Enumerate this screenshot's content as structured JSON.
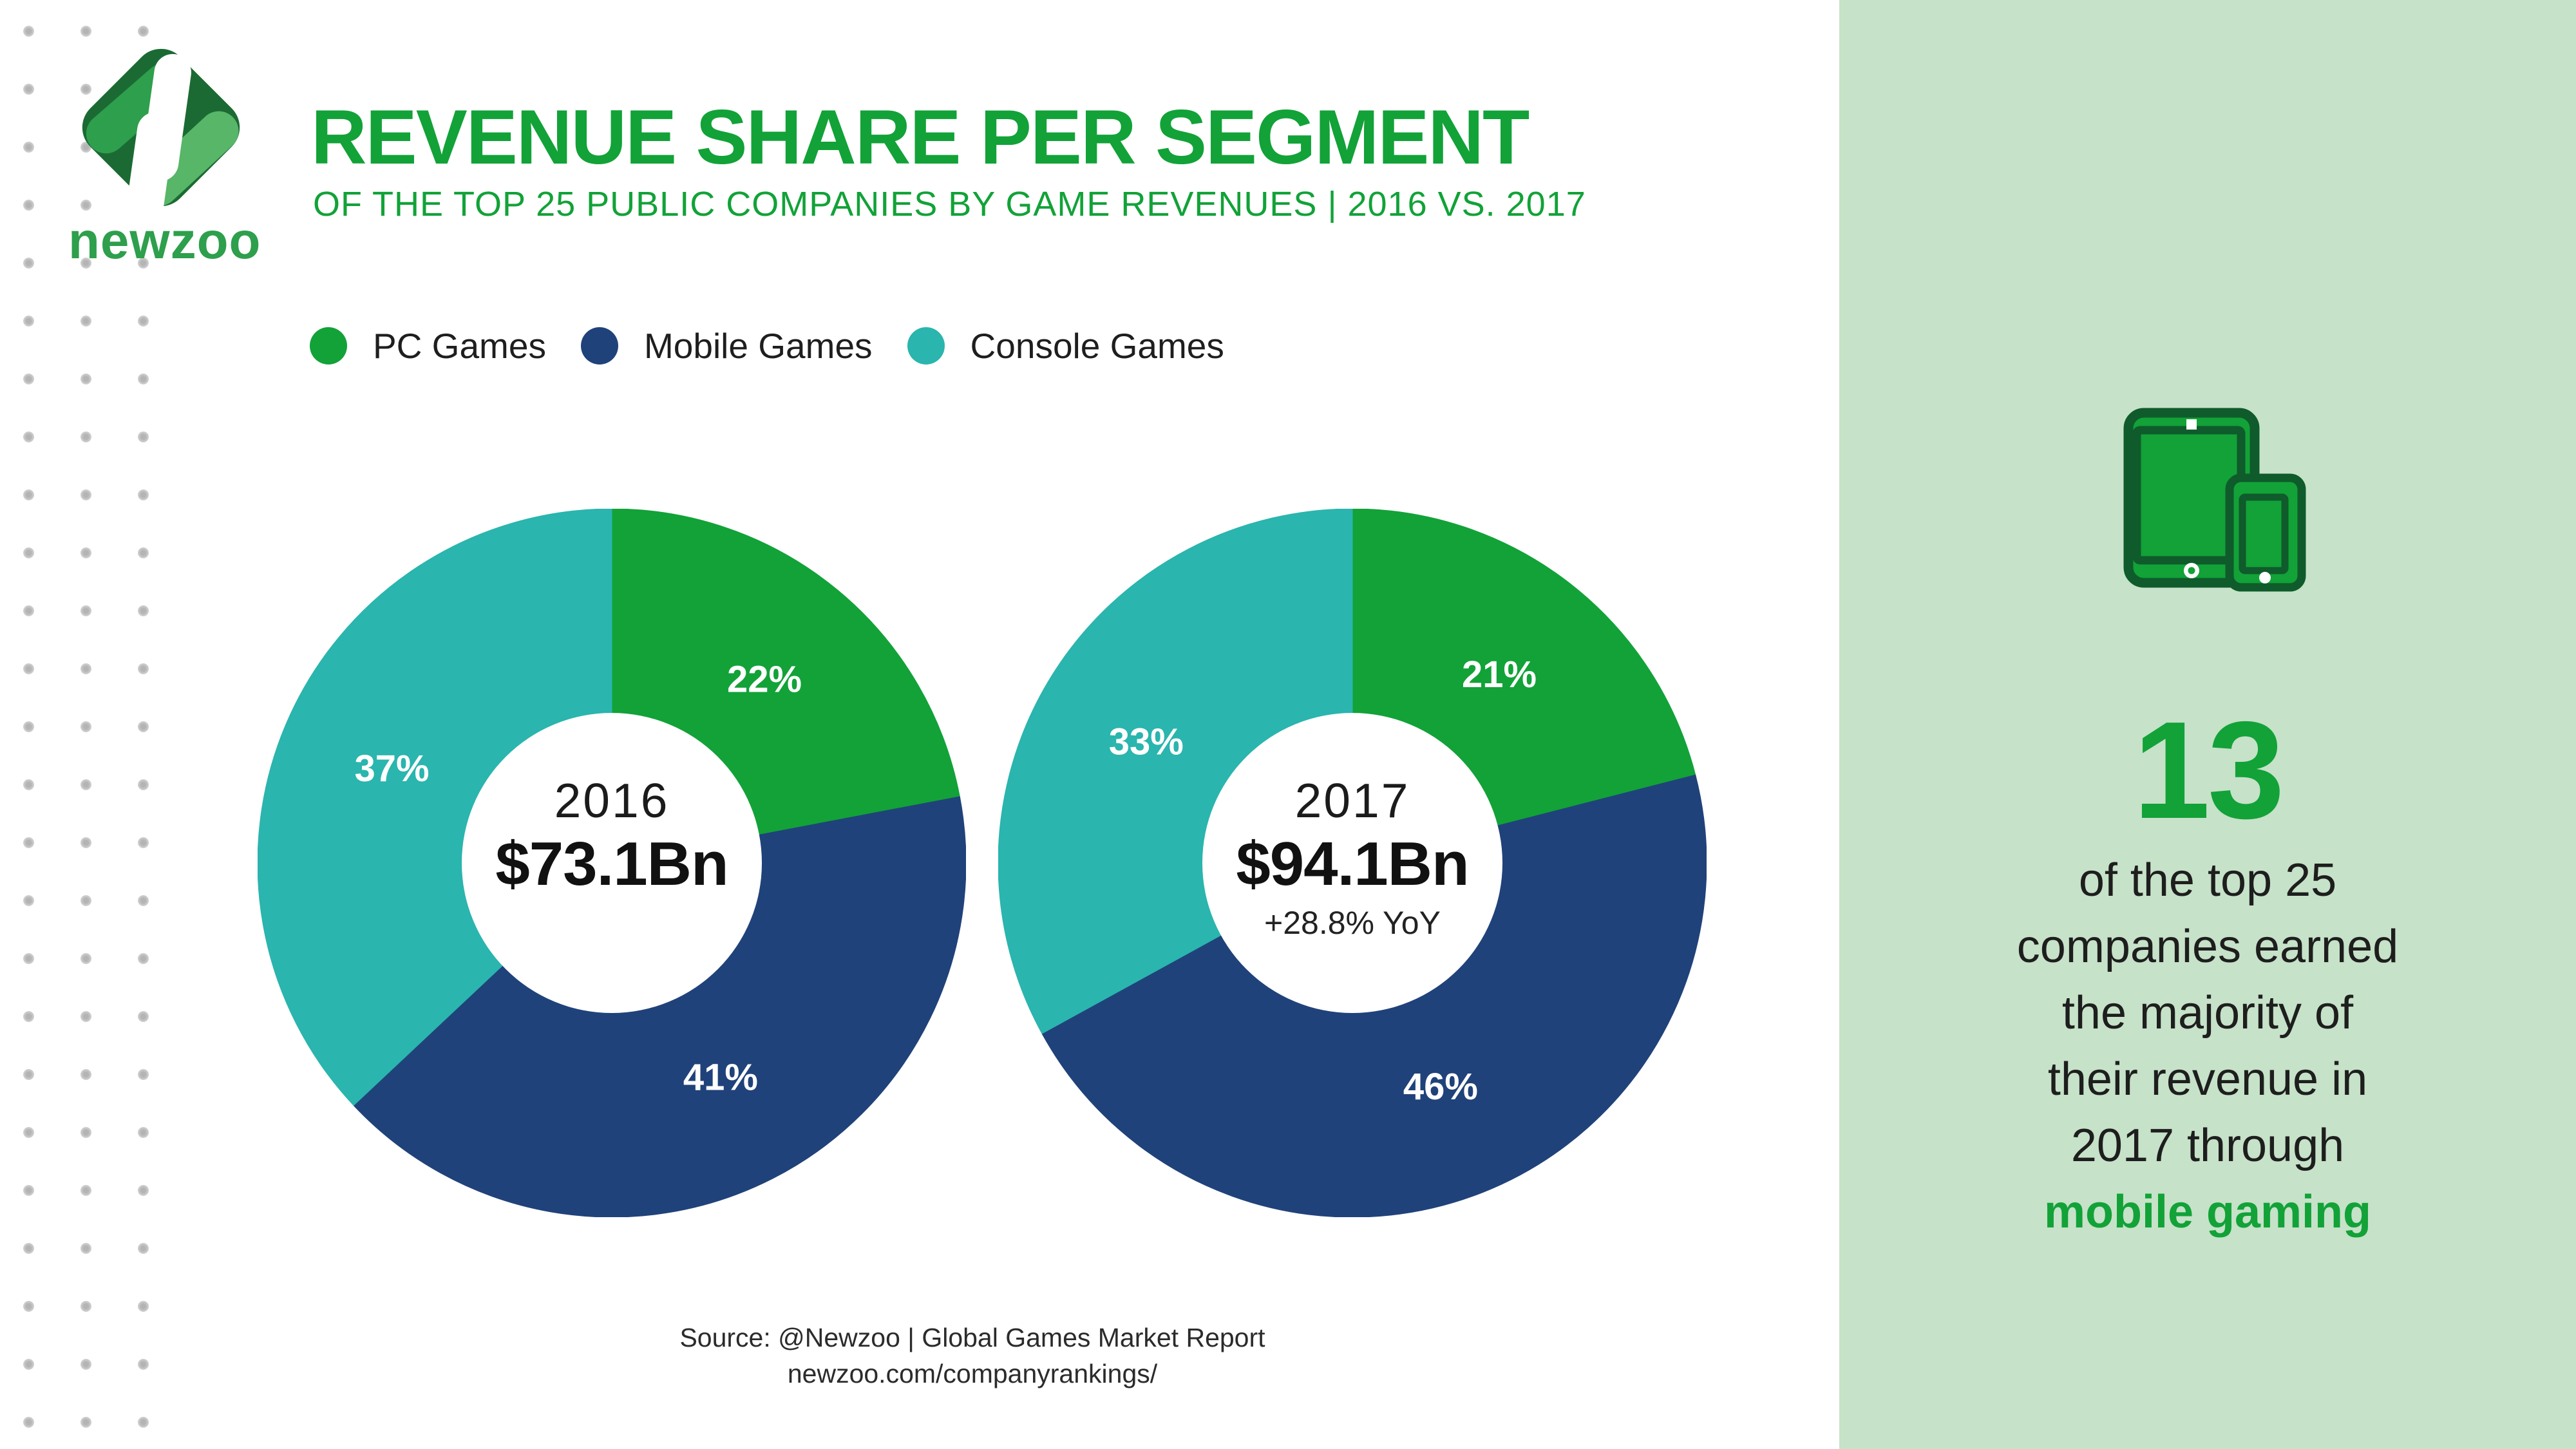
{
  "colors": {
    "green": "#12a238",
    "navy": "#20427a",
    "teal": "#2ab5ae",
    "sidebar_bg": "#c6e2c8",
    "dark_green": "#0f5b2b",
    "logo_dark": "#1c6a33",
    "logo_mid": "#2e9f4c",
    "logo_light": "#57b668",
    "dot_gray": "#c8c8c8",
    "slice_label": "#ffffff"
  },
  "branding": {
    "wordmark": "newzoo"
  },
  "header": {
    "title": "REVENUE SHARE PER SEGMENT",
    "subtitle": "OF THE TOP 25 PUBLIC COMPANIES BY GAME REVENUES | 2016 VS. 2017"
  },
  "legend": {
    "position": "top",
    "items": [
      {
        "label": "PC Games",
        "color_key": "green"
      },
      {
        "label": "Mobile Games",
        "color_key": "navy"
      },
      {
        "label": "Console Games",
        "color_key": "teal"
      }
    ]
  },
  "chart_data": [
    {
      "type": "pie",
      "donut": true,
      "title": "2016",
      "total_label": "$73.1Bn",
      "yoy_label": "",
      "unit": "%",
      "start_angle_deg": 0,
      "direction": "clockwise",
      "segments": [
        {
          "label": "PC Games",
          "value": 22,
          "color_key": "green"
        },
        {
          "label": "Mobile Games",
          "value": 41,
          "color_key": "navy"
        },
        {
          "label": "Console Games",
          "value": 37,
          "color_key": "teal"
        }
      ]
    },
    {
      "type": "pie",
      "donut": true,
      "title": "2017",
      "total_label": "$94.1Bn",
      "yoy_label": "+28.8% YoY",
      "unit": "%",
      "start_angle_deg": 0,
      "direction": "clockwise",
      "segments": [
        {
          "label": "PC Games",
          "value": 21,
          "color_key": "green"
        },
        {
          "label": "Mobile Games",
          "value": 46,
          "color_key": "navy"
        },
        {
          "label": "Console Games",
          "value": 33,
          "color_key": "teal"
        }
      ]
    }
  ],
  "sidebar": {
    "fact": {
      "number": "13",
      "lines": [
        "of the top 25",
        "companies earned",
        "the majority of",
        "their revenue in",
        "2017 through"
      ],
      "highlight": "mobile gaming"
    }
  },
  "source": {
    "line1": "Source: @Newzoo | Global Games Market Report",
    "line2": "newzoo.com/companyrankings/"
  }
}
